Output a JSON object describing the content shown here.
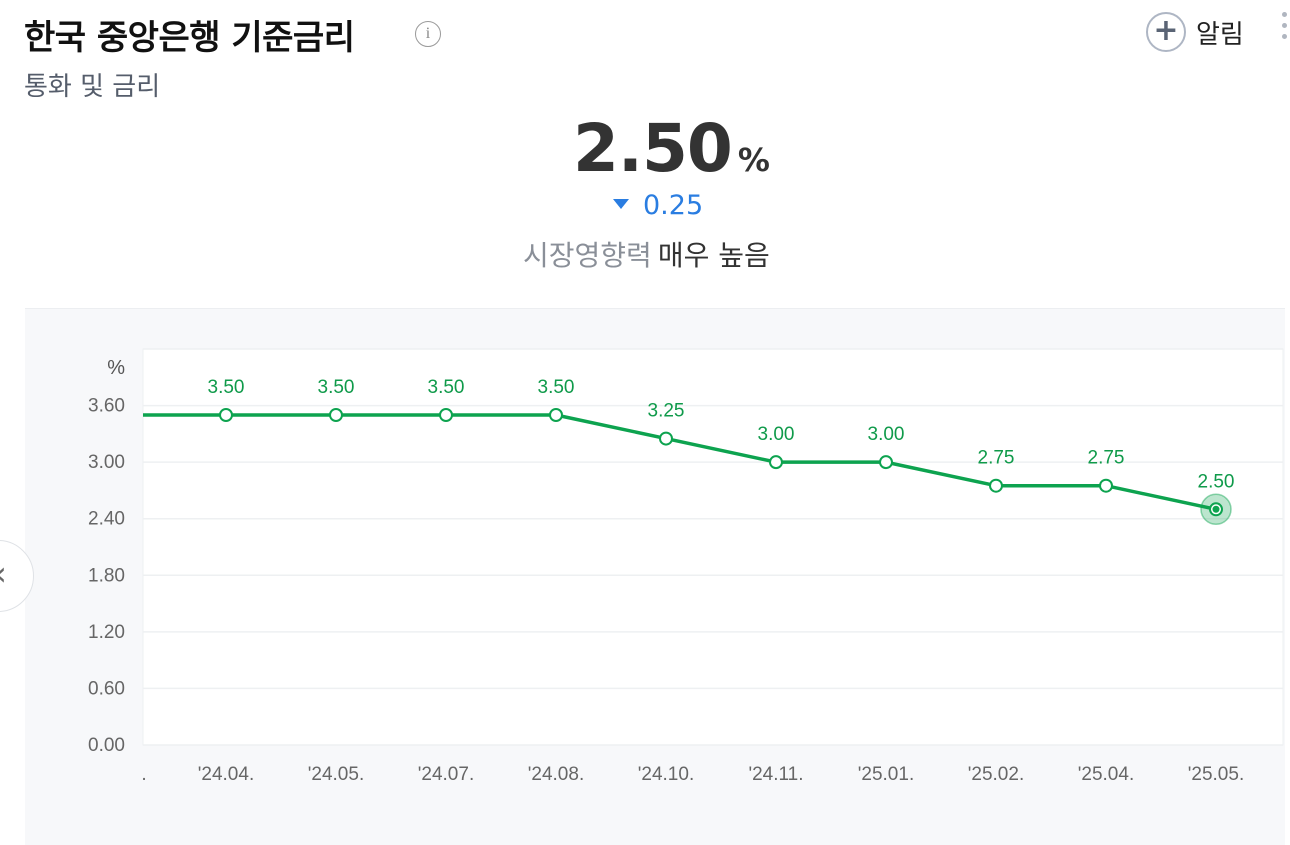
{
  "header": {
    "title": "한국 중앙은행 기준금리",
    "info_icon": "info-icon",
    "subtitle": "통화 및 금리",
    "alarm_label": "알림",
    "alarm_icon": "plus-icon",
    "more_icon": "more-vertical-icon"
  },
  "summary": {
    "value": "2.50",
    "unit": "%",
    "change": "0.25",
    "change_direction": "down",
    "impact_label": "시장영향력",
    "impact_value": "매우 높음"
  },
  "colors": {
    "line": "#0da34f",
    "change": "#2a7de1",
    "panel": "#f7f8fa"
  },
  "chart_data": {
    "type": "line",
    "y_unit": "%",
    "categories": [
      "'24.04.",
      "'24.05.",
      "'24.07.",
      "'24.08.",
      "'24.10.",
      "'24.11.",
      "'25.01.",
      "'25.02.",
      "'25.04.",
      "'25.05."
    ],
    "leading_category": ".",
    "series": [
      {
        "values": [
          3.5,
          3.5,
          3.5,
          3.5,
          3.25,
          3.0,
          3.0,
          2.75,
          2.75,
          2.5
        ],
        "value_labels": [
          "3.50",
          "3.50",
          "3.50",
          "3.50",
          "3.25",
          "3.00",
          "3.00",
          "2.75",
          "2.75",
          "2.50"
        ],
        "leading_value": 3.5
      }
    ],
    "y_ticks": [
      "3.60",
      "3.00",
      "2.40",
      "1.80",
      "1.20",
      "0.60",
      "0.00"
    ],
    "y_tick_values": [
      3.6,
      3.0,
      2.4,
      1.8,
      1.2,
      0.6,
      0.0
    ],
    "ylim": [
      0,
      4.2
    ],
    "grid": true,
    "highlight": "last"
  }
}
